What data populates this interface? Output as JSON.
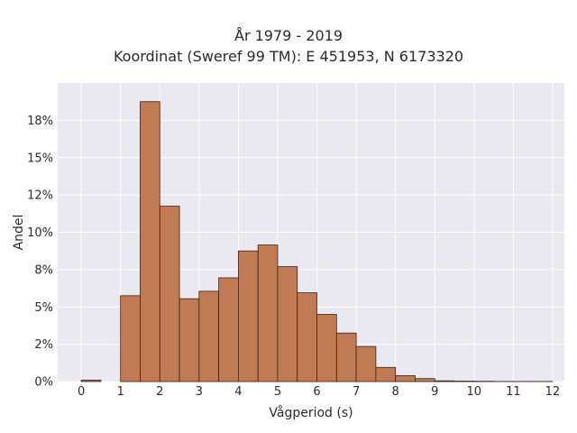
{
  "chart_data": {
    "type": "bar",
    "title": "År 1979 - 2019",
    "subtitle": "Koordinat (Sweref 99 TM): E 451953, N 6173320",
    "xlabel": "Vågperiod (s)",
    "ylabel": "Andel",
    "bin_width": 0.5,
    "bins": [
      {
        "x0": 0.0,
        "value": 0.001
      },
      {
        "x0": 1.0,
        "value": 0.0575
      },
      {
        "x0": 1.5,
        "value": 0.1875
      },
      {
        "x0": 2.0,
        "value": 0.1175
      },
      {
        "x0": 2.5,
        "value": 0.0555
      },
      {
        "x0": 3.0,
        "value": 0.0605
      },
      {
        "x0": 3.5,
        "value": 0.0695
      },
      {
        "x0": 4.0,
        "value": 0.0875
      },
      {
        "x0": 4.5,
        "value": 0.0915
      },
      {
        "x0": 5.0,
        "value": 0.077
      },
      {
        "x0": 5.5,
        "value": 0.0595
      },
      {
        "x0": 6.0,
        "value": 0.045
      },
      {
        "x0": 6.5,
        "value": 0.0325
      },
      {
        "x0": 7.0,
        "value": 0.0235
      },
      {
        "x0": 7.5,
        "value": 0.0095
      },
      {
        "x0": 8.0,
        "value": 0.004
      },
      {
        "x0": 8.5,
        "value": 0.002
      },
      {
        "x0": 9.0,
        "value": 0.0005
      },
      {
        "x0": 9.5,
        "value": 0.0003
      },
      {
        "x0": 10.0,
        "value": 0.0002
      },
      {
        "x0": 10.5,
        "value": 0.0001
      },
      {
        "x0": 11.0,
        "value": 0.0001
      },
      {
        "x0": 11.5,
        "value": 0.0001
      }
    ],
    "xlim": [
      -0.6,
      12.3
    ],
    "ylim": [
      0,
      0.2
    ],
    "x_ticks": [
      0,
      1,
      2,
      3,
      4,
      5,
      6,
      7,
      8,
      9,
      10,
      11,
      12
    ],
    "y_ticks": [
      {
        "value": 0.0,
        "label": "0%"
      },
      {
        "value": 0.025,
        "label": "2%"
      },
      {
        "value": 0.05,
        "label": "5%"
      },
      {
        "value": 0.075,
        "label": "8%"
      },
      {
        "value": 0.1,
        "label": "10%"
      },
      {
        "value": 0.125,
        "label": "12%"
      },
      {
        "value": 0.15,
        "label": "15%"
      },
      {
        "value": 0.175,
        "label": "18%"
      }
    ],
    "grid": true,
    "colors": {
      "bar_fill": "#c07b55",
      "bar_edge": "#3d2216",
      "plot_bg": "#e9e9f1",
      "grid": "#ffffff"
    }
  }
}
